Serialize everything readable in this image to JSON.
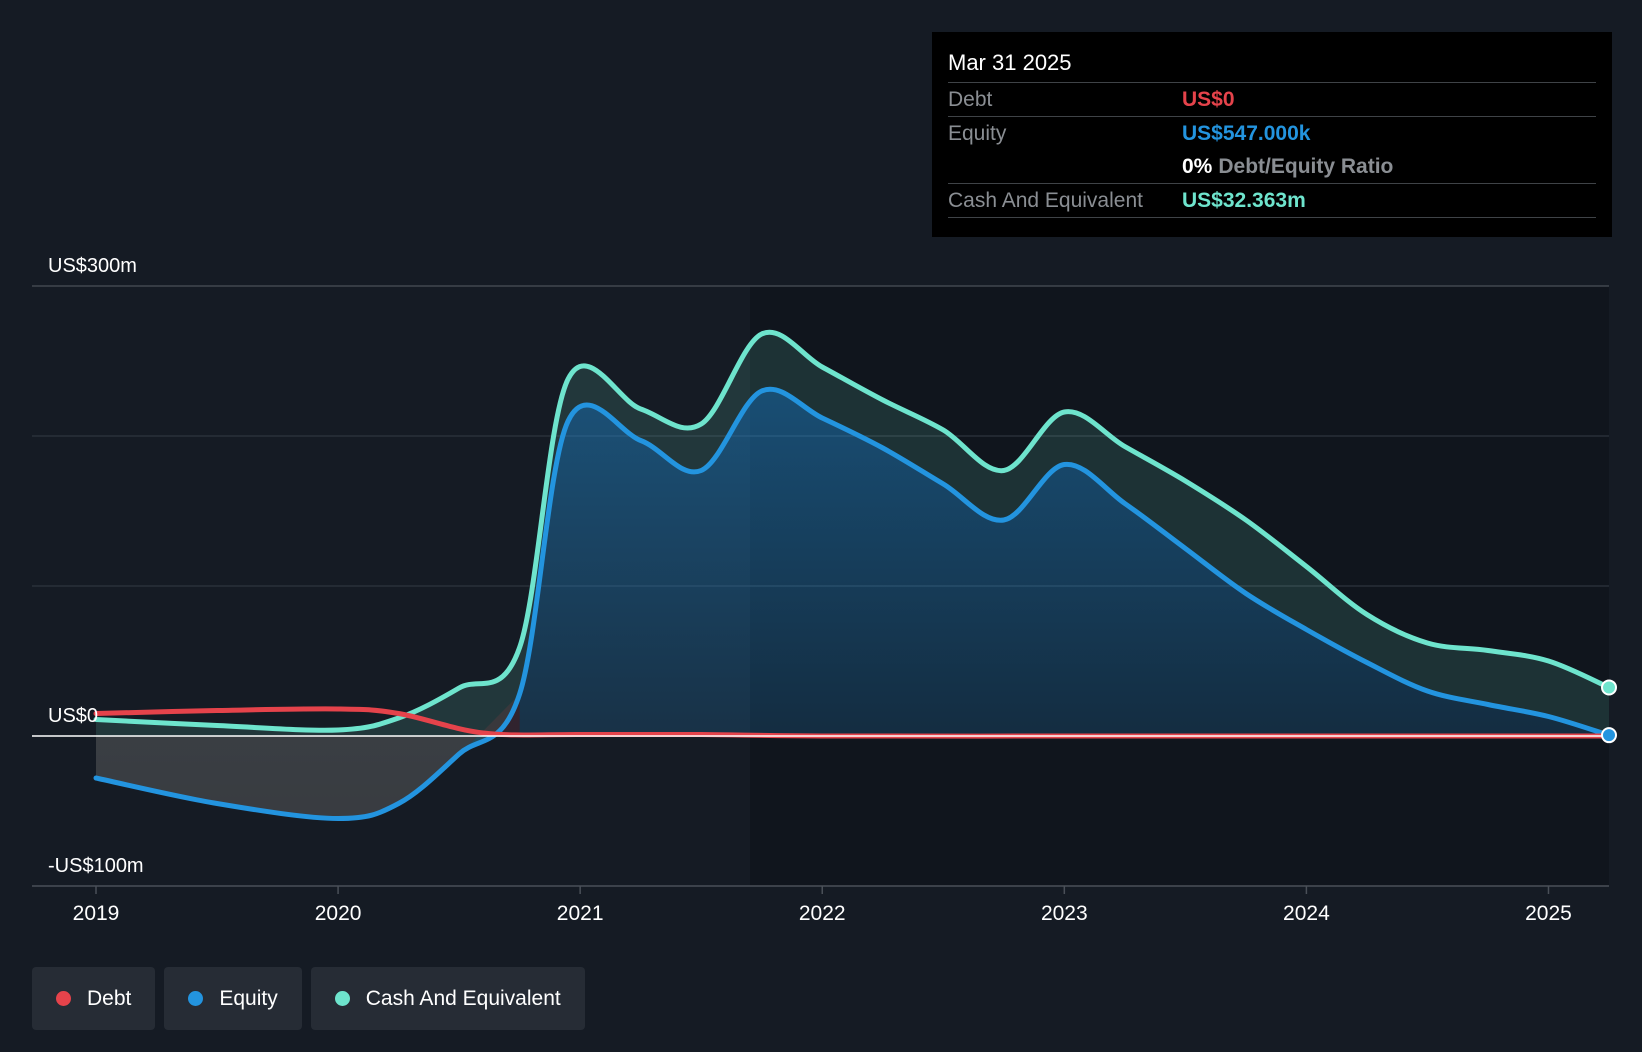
{
  "tooltip": {
    "date": "Mar 31 2025",
    "debt_label": "Debt",
    "debt_value": "US$0",
    "equity_label": "Equity",
    "equity_value": "US$547.000k",
    "ratio_value": "0%",
    "ratio_label": "Debt/Equity Ratio",
    "cash_label": "Cash And Equivalent",
    "cash_value": "US$32.363m"
  },
  "legend": [
    {
      "label": "Debt",
      "color": "#e5434b"
    },
    {
      "label": "Equity",
      "color": "#2394df"
    },
    {
      "label": "Cash And Equivalent",
      "color": "#6ee4cd"
    }
  ],
  "chart_data": {
    "type": "area",
    "ylim": [
      -100,
      300
    ],
    "xlim": [
      2019.0,
      2025.25
    ],
    "ytick_labels": [
      {
        "value": 300,
        "label": "US$300m"
      },
      {
        "value": 0,
        "label": "US$0"
      },
      {
        "value": -100,
        "label": "-US$100m"
      }
    ],
    "ygrid": [
      300,
      200,
      100
    ],
    "xtick_labels": [
      {
        "value": 2019,
        "label": "2019"
      },
      {
        "value": 2020,
        "label": "2020"
      },
      {
        "value": 2021,
        "label": "2021"
      },
      {
        "value": 2022,
        "label": "2022"
      },
      {
        "value": 2023,
        "label": "2023"
      },
      {
        "value": 2024,
        "label": "2024"
      },
      {
        "value": 2025,
        "label": "2025"
      }
    ],
    "series": [
      {
        "name": "Debt",
        "color": "#e5434b",
        "x": [
          2019.0,
          2019.5,
          2020.0,
          2020.25,
          2020.6,
          2021.0,
          2021.5,
          2022.0,
          2023.0,
          2024.0,
          2025.0,
          2025.25
        ],
        "y": [
          15,
          17,
          18,
          15,
          2,
          1,
          1,
          0,
          0,
          0,
          0,
          0
        ]
      },
      {
        "name": "Equity",
        "color": "#2394df",
        "x": [
          2019.0,
          2019.5,
          2020.0,
          2020.25,
          2020.5,
          2020.75,
          2020.95,
          2021.25,
          2021.5,
          2021.75,
          2022.0,
          2022.25,
          2022.5,
          2022.75,
          2023.0,
          2023.25,
          2023.5,
          2023.75,
          2024.0,
          2024.25,
          2024.5,
          2024.75,
          2025.0,
          2025.25
        ],
        "y": [
          -28,
          -45,
          -55,
          -45,
          -12,
          28,
          210,
          197,
          177,
          230,
          212,
          192,
          168,
          144,
          181,
          155,
          125,
          95,
          71,
          49,
          30,
          21,
          13,
          0.547
        ]
      },
      {
        "name": "Cash And Equivalent",
        "color": "#6ee4cd",
        "x": [
          2019.0,
          2019.5,
          2020.0,
          2020.25,
          2020.5,
          2020.75,
          2020.95,
          2021.25,
          2021.5,
          2021.75,
          2022.0,
          2022.25,
          2022.5,
          2022.75,
          2023.0,
          2023.25,
          2023.5,
          2023.75,
          2024.0,
          2024.25,
          2024.5,
          2024.75,
          2025.0,
          2025.25
        ],
        "y": [
          11,
          7,
          4,
          12,
          32,
          59,
          238,
          218,
          208,
          268,
          246,
          224,
          204,
          177,
          216,
          193,
          170,
          144,
          113,
          81,
          62,
          57,
          50,
          32.363
        ]
      }
    ],
    "tooltip_x": 2025.25
  }
}
